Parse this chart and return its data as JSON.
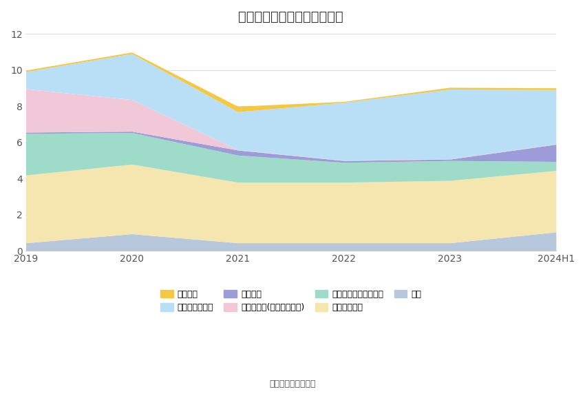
{
  "title": "历年主要资产堆积图（亿元）",
  "years": [
    "2019",
    "2020",
    "2021",
    "2022",
    "2023",
    "2024H1"
  ],
  "series": [
    {
      "name": "其它",
      "color": "#b8c8dc",
      "values": [
        0.45,
        0.95,
        0.45,
        0.45,
        0.45,
        1.05
      ]
    },
    {
      "name": "投资性房地产",
      "color": "#f5e6b0",
      "values": [
        3.75,
        3.85,
        3.35,
        3.35,
        3.45,
        3.4
      ]
    },
    {
      "name": "其他权益工具投资合计",
      "color": "#9edbc8",
      "values": [
        2.3,
        1.75,
        1.5,
        1.1,
        1.1,
        0.5
      ]
    },
    {
      "name": "应收账款",
      "color": "#9b9cd8",
      "values": [
        0.07,
        0.07,
        0.28,
        0.1,
        0.08,
        0.95
      ]
    },
    {
      "name": "其他应收款(含利息和股利)",
      "color": "#f0c8d8",
      "values": [
        2.4,
        1.75,
        0.02,
        0.02,
        0.02,
        0.02
      ]
    },
    {
      "name": "交易性金融资产",
      "color": "#b8dff5",
      "values": [
        0.95,
        2.55,
        2.1,
        3.2,
        3.85,
        3.0
      ]
    },
    {
      "name": "货币资金",
      "color": "#f5c842",
      "values": [
        0.08,
        0.08,
        0.3,
        0.05,
        0.1,
        0.1
      ]
    }
  ],
  "ylim": [
    0,
    12
  ],
  "yticks": [
    0,
    2,
    4,
    6,
    8,
    10,
    12
  ],
  "background_color": "#ffffff",
  "grid_color": "#dddddd",
  "title_fontsize": 14,
  "source_text": "数据来源：恒生聚源",
  "legend_row1": [
    6,
    5,
    3,
    4
  ],
  "legend_row2": [
    2,
    1,
    0
  ]
}
